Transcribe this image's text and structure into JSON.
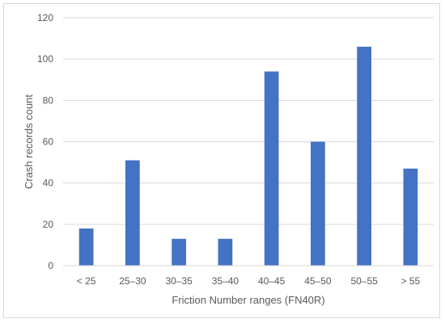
{
  "chart_data": {
    "type": "bar",
    "title": "",
    "xlabel": "Friction Number ranges (FN40R)",
    "ylabel": "Crash records count",
    "categories": [
      "< 25",
      "25–30",
      "30–35",
      "35–40",
      "40–45",
      "45–50",
      "50–55",
      "> 55"
    ],
    "values": [
      18,
      51,
      13,
      13,
      94,
      60,
      106,
      47
    ],
    "ylim": [
      0,
      120
    ],
    "yticks": [
      0,
      20,
      40,
      60,
      80,
      100,
      120
    ],
    "grid": "horizontal",
    "legend": "none",
    "bar_color": "#4472c4",
    "grid_color": "#d9d9d9",
    "text_color": "#595959"
  }
}
